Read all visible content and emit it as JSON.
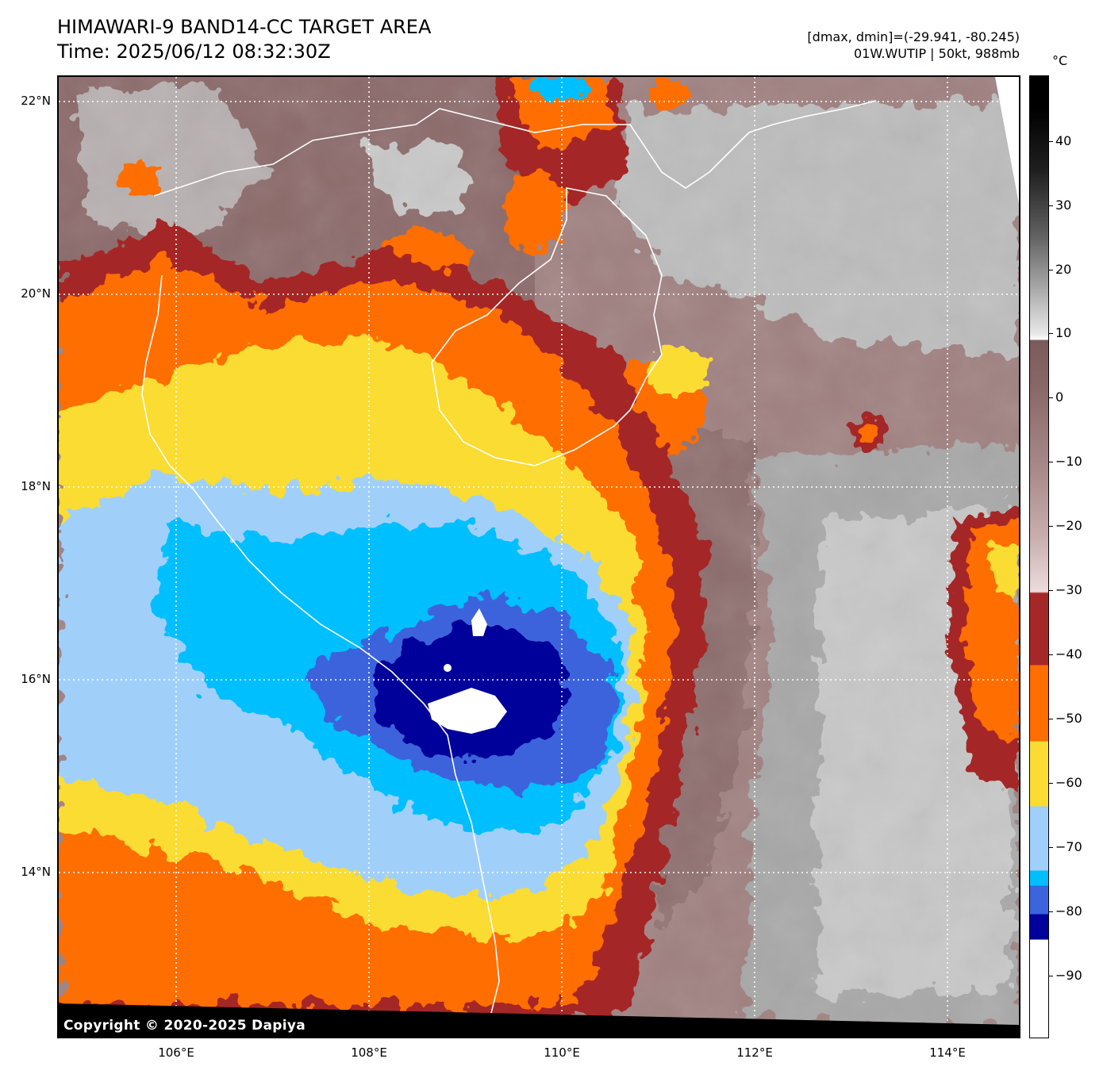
{
  "header": {
    "title_line1": "HIMAWARI-9 BAND14-CC TARGET AREA",
    "title_line2": "Time: 2025/06/12 08:32:30Z",
    "range_info": "[dmax, dmin]=(-29.941, -80.245)",
    "storm_info": "01W.WUTIP | 50kt, 988mb"
  },
  "map": {
    "copyright": "Copyright © 2020-2025 Dapiya",
    "lat_labels": [
      "22°N",
      "20°N",
      "18°N",
      "16°N",
      "14°N"
    ],
    "lon_labels": [
      "106°E",
      "108°E",
      "110°E",
      "112°E",
      "114°E"
    ],
    "colors": {
      "coldest": "#ffffff",
      "dark_blue": "#00009a",
      "royal_blue": "#3c64dc",
      "cyan": "#00bfff",
      "light_blue": "#a0d0fa",
      "yellow": "#fadc32",
      "orange": "#ff6e00",
      "dark_red": "#a52828",
      "warm_brown": "#8c6464",
      "pale_pink": "#d8bfbf",
      "gray": "#9a9a9a"
    }
  },
  "colorbar": {
    "unit": "°C",
    "tick_labels": [
      "40",
      "30",
      "20",
      "10",
      "0",
      "−10",
      "−20",
      "−30",
      "−40",
      "−50",
      "−60",
      "−70",
      "−80",
      "−90"
    ]
  }
}
